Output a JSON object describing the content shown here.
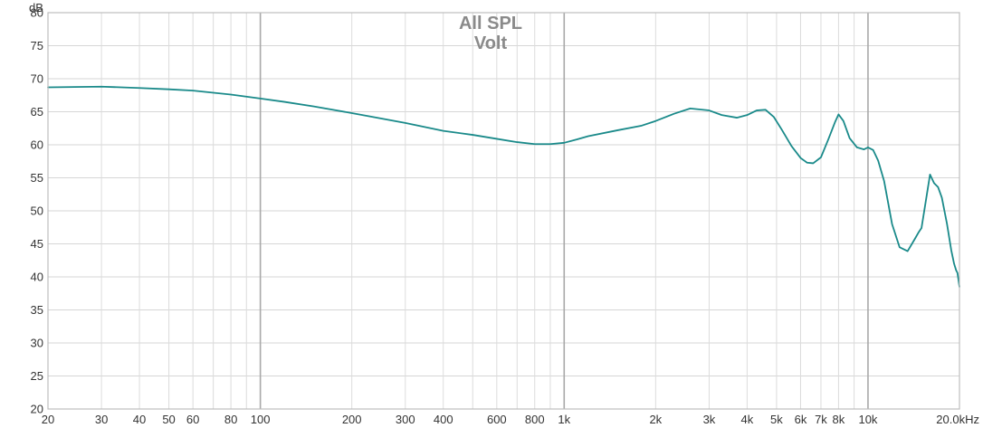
{
  "chart_data": {
    "type": "line",
    "title": "All SPL",
    "subtitle": "Volt",
    "ylabel": "dB",
    "xlabel": "",
    "x_scale": "log",
    "xlim": [
      20,
      20000
    ],
    "ylim": [
      20,
      80
    ],
    "grid": true,
    "y_ticks": [
      {
        "value": 20,
        "label": "20"
      },
      {
        "value": 25,
        "label": "25"
      },
      {
        "value": 30,
        "label": "30"
      },
      {
        "value": 35,
        "label": "35"
      },
      {
        "value": 40,
        "label": "40"
      },
      {
        "value": 45,
        "label": "45"
      },
      {
        "value": 50,
        "label": "50"
      },
      {
        "value": 55,
        "label": "55"
      },
      {
        "value": 60,
        "label": "60"
      },
      {
        "value": 65,
        "label": "65"
      },
      {
        "value": 70,
        "label": "70"
      },
      {
        "value": 75,
        "label": "75"
      },
      {
        "value": 80,
        "label": "80"
      }
    ],
    "x_ticks": [
      {
        "value": 20,
        "label": "20"
      },
      {
        "value": 30,
        "label": "30"
      },
      {
        "value": 40,
        "label": "40"
      },
      {
        "value": 50,
        "label": "50"
      },
      {
        "value": 60,
        "label": "60"
      },
      {
        "value": 80,
        "label": "80"
      },
      {
        "value": 100,
        "label": "100"
      },
      {
        "value": 200,
        "label": "200"
      },
      {
        "value": 300,
        "label": "300"
      },
      {
        "value": 400,
        "label": "400"
      },
      {
        "value": 600,
        "label": "600"
      },
      {
        "value": 800,
        "label": "800"
      },
      {
        "value": 1000,
        "label": "1k"
      },
      {
        "value": 2000,
        "label": "2k"
      },
      {
        "value": 3000,
        "label": "3k"
      },
      {
        "value": 4000,
        "label": "4k"
      },
      {
        "value": 5000,
        "label": "5k"
      },
      {
        "value": 6000,
        "label": "6k"
      },
      {
        "value": 7000,
        "label": "7k"
      },
      {
        "value": 8000,
        "label": "8k"
      },
      {
        "value": 10000,
        "label": "10k"
      },
      {
        "value": 20000,
        "label": "20.0kHz"
      }
    ],
    "major_x_gridlines": [
      100,
      1000,
      10000
    ],
    "minor_x_gridlines": [
      30,
      40,
      50,
      60,
      70,
      80,
      90,
      200,
      300,
      400,
      500,
      600,
      700,
      800,
      900,
      2000,
      3000,
      4000,
      5000,
      6000,
      7000,
      8000,
      9000
    ],
    "series": [
      {
        "color": "#1a8a8a",
        "x": [
          20,
          30,
          40,
          50,
          60,
          80,
          100,
          120,
          150,
          200,
          300,
          400,
          500,
          600,
          700,
          800,
          900,
          1000,
          1100,
          1200,
          1500,
          1800,
          2000,
          2300,
          2600,
          3000,
          3300,
          3700,
          4000,
          4300,
          4600,
          4900,
          5200,
          5600,
          6000,
          6300,
          6600,
          7000,
          7400,
          7800,
          8000,
          8300,
          8700,
          9200,
          9700,
          10000,
          10400,
          10800,
          11300,
          12000,
          12700,
          13500,
          14200,
          14700,
          15000,
          15500,
          16000,
          16500,
          17000,
          17500,
          18200,
          18800,
          19200,
          19500,
          19700,
          20000
        ],
        "y": [
          68.7,
          68.8,
          68.6,
          68.4,
          68.2,
          67.6,
          67.0,
          66.5,
          65.8,
          64.8,
          63.3,
          62.1,
          61.5,
          60.9,
          60.4,
          60.1,
          60.1,
          60.3,
          60.8,
          61.3,
          62.2,
          62.9,
          63.6,
          64.7,
          65.5,
          65.2,
          64.5,
          64.1,
          64.5,
          65.2,
          65.3,
          64.2,
          62.3,
          59.8,
          58.0,
          57.3,
          57.2,
          58.1,
          60.8,
          63.5,
          64.6,
          63.6,
          61.0,
          59.6,
          59.3,
          59.6,
          59.2,
          57.6,
          54.5,
          48.0,
          44.5,
          43.9,
          45.6,
          46.8,
          47.4,
          51.5,
          55.5,
          54.2,
          53.6,
          52.0,
          48.0,
          44.0,
          42.0,
          41.0,
          40.6,
          38.5
        ]
      }
    ]
  }
}
